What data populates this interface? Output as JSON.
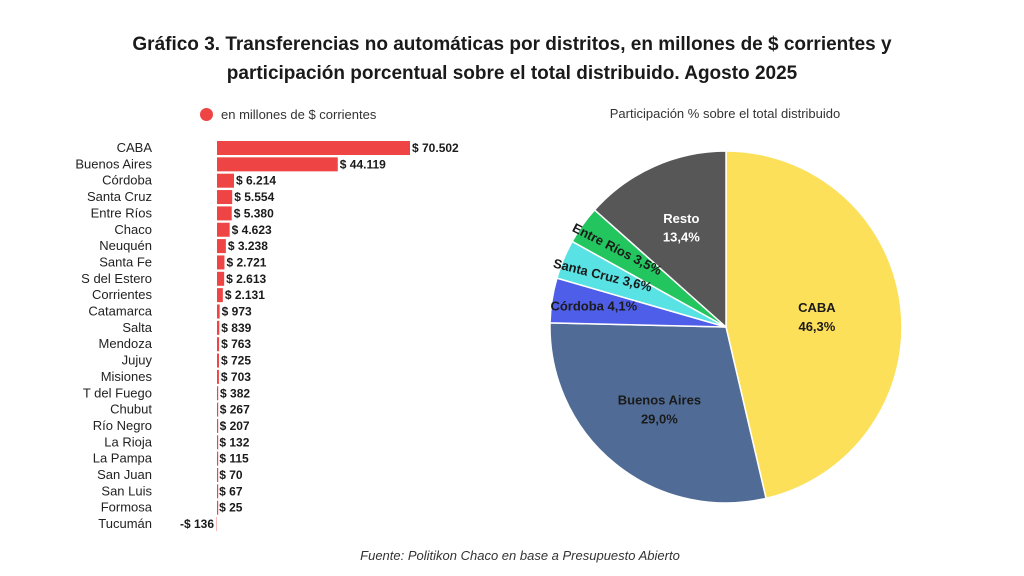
{
  "title_lines": [
    "Gráfico 3. Transferencias no automáticas por distritos, en millones de $ corrientes y",
    "participación porcentual sobre el total distribuido. Agosto 2025"
  ],
  "source": "Fuente: Politikon Chaco en base a Presupuesto Abierto",
  "colors": {
    "bar": "#ef4444"
  },
  "chart_data": [
    {
      "type": "bar",
      "orientation": "horizontal",
      "legend": "en millones de $ corrientes",
      "categories": [
        "CABA",
        "Buenos Aires",
        "Córdoba",
        "Santa Cruz",
        "Entre Ríos",
        "Chaco",
        "Neuquén",
        "Santa Fe",
        "S del Estero",
        "Corrientes",
        "Catamarca",
        "Salta",
        "Mendoza",
        "Jujuy",
        "Misiones",
        "T del Fuego",
        "Chubut",
        "Río Negro",
        "La Rioja",
        "La Pampa",
        "San Juan",
        "San Luis",
        "Formosa",
        "Tucumán"
      ],
      "values": [
        70502,
        44119,
        6214,
        5554,
        5380,
        4623,
        3238,
        2721,
        2613,
        2131,
        973,
        839,
        763,
        725,
        703,
        382,
        267,
        207,
        132,
        115,
        70,
        67,
        25,
        -136
      ],
      "data_labels": [
        "$ 70.502",
        "$ 44.119",
        "$ 6.214",
        "$ 5.554",
        "$ 5.380",
        "$ 4.623",
        "$ 3.238",
        "$ 2.721",
        "$ 2.613",
        "$ 2.131",
        "$ 973",
        "$ 839",
        "$ 763",
        "$ 725",
        "$ 703",
        "$ 382",
        "$ 267",
        "$ 207",
        "$ 132",
        "$ 115",
        "$ 70",
        "$ 67",
        "$ 25",
        "-$ 136"
      ]
    },
    {
      "type": "pie",
      "title": "Participación % sobre el total distribuido",
      "slices": [
        {
          "name": "CABA",
          "value": 46.3,
          "label": "46,3%",
          "color": "#fde05a",
          "text_color": "#1a1a1a"
        },
        {
          "name": "Buenos Aires",
          "value": 29.0,
          "label": "29,0%",
          "color": "#506c96",
          "text_color": "#1a1a1a"
        },
        {
          "name": "Córdoba",
          "value": 4.1,
          "label": "4,1%",
          "color": "#4f5ee8",
          "text_color": "#1a1a1a"
        },
        {
          "name": "Santa Cruz",
          "value": 3.6,
          "label": "3,6%",
          "color": "#58e2e4",
          "text_color": "#1a1a1a"
        },
        {
          "name": "Entre Ríos",
          "value": 3.5,
          "label": "3,5%",
          "color": "#22c55e",
          "text_color": "#1a1a1a"
        },
        {
          "name": "Resto",
          "value": 13.4,
          "label": "13,4%",
          "color": "#575757",
          "text_color": "#ffffff"
        }
      ]
    }
  ]
}
